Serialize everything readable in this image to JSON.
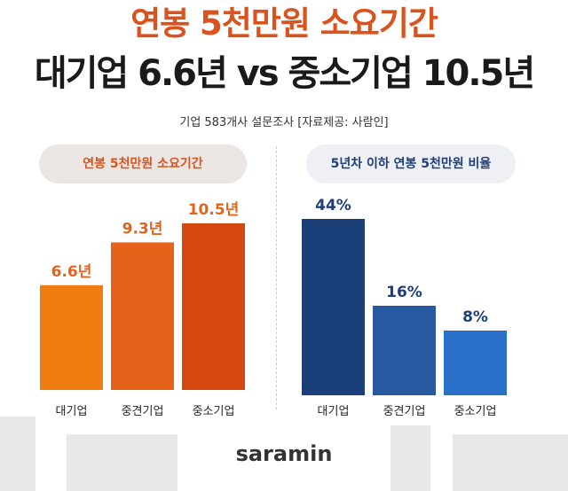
{
  "header": {
    "title": "연봉 5천만원 소요기간",
    "headline": "대기업 6.6년 vs 중소기업 10.5년",
    "subtitle": "기업 583개사 설문조사  [자료제공: 사람인]"
  },
  "chart_data": [
    {
      "type": "bar",
      "title": "연봉 5천만원 소요기간",
      "categories": [
        "대기업",
        "중견기업",
        "중소기업"
      ],
      "values": [
        6.6,
        9.3,
        10.5
      ],
      "data_labels": [
        "6.6년",
        "9.3년",
        "10.5년"
      ],
      "unit": "년",
      "colors": [
        "#f07d12",
        "#e5621a",
        "#d4470f"
      ],
      "label_color": "#e5621a"
    },
    {
      "type": "bar",
      "title": "5년차 이하 연봉 5천만원 비율",
      "categories": [
        "대기업",
        "중견기업",
        "중소기업"
      ],
      "values": [
        44,
        16,
        8
      ],
      "data_labels": [
        "44%",
        "16%",
        "8%"
      ],
      "unit": "%",
      "colors": [
        "#1b3f78",
        "#2858a0",
        "#2870c8"
      ],
      "label_color": "#1f3e78"
    }
  ],
  "footer": {
    "logo": "saramin"
  }
}
